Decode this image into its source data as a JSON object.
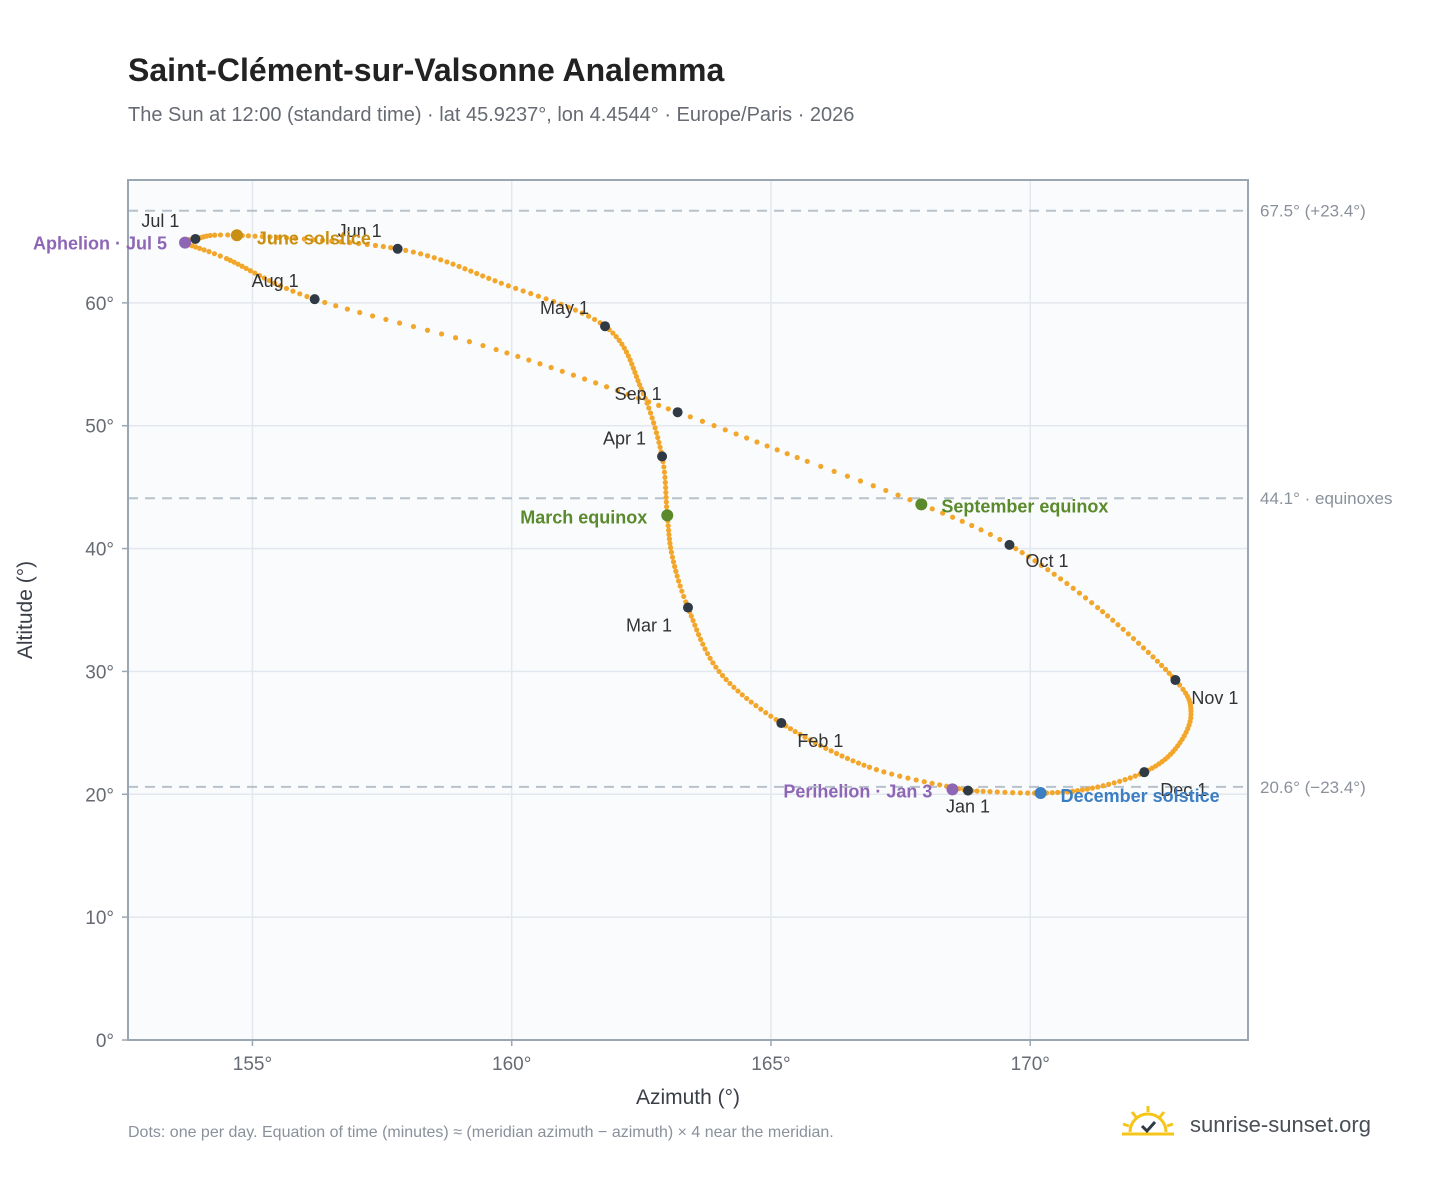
{
  "header": {
    "title": "Saint-Clément-sur-Valsonne Analemma",
    "subtitle": "The Sun at 12:00 (standard time) · lat 45.9237°, lon 4.4544° · Europe/Paris · 2026"
  },
  "footer": {
    "note": "Dots: one per day. Equation of time (minutes) ≈ (meridian azimuth − azimuth) × 4 near the meridian.",
    "brand": "sunrise-sunset.org"
  },
  "chart_data": {
    "type": "scatter",
    "xlabel": "Azimuth (°)",
    "ylabel": "Altitude (°)",
    "xlim": [
      152.6,
      174.2
    ],
    "ylim": [
      0,
      70
    ],
    "x_ticks": [
      {
        "value": 155,
        "label": "155°"
      },
      {
        "value": 160,
        "label": "160°"
      },
      {
        "value": 165,
        "label": "165°"
      },
      {
        "value": 170,
        "label": "170°"
      }
    ],
    "y_ticks": [
      {
        "value": 0,
        "label": "0°"
      },
      {
        "value": 10,
        "label": "10°"
      },
      {
        "value": 20,
        "label": "20°"
      },
      {
        "value": 30,
        "label": "30°"
      },
      {
        "value": 40,
        "label": "40°"
      },
      {
        "value": 50,
        "label": "50°"
      },
      {
        "value": 60,
        "label": "60°"
      }
    ],
    "grid": true,
    "colors": {
      "path": "#f2a62a",
      "month": "#2f3a44",
      "event_purple": "#8e66b6",
      "event_gold": "#c98f12",
      "event_green": "#5a8a2c",
      "event_blue": "#3b7ec2",
      "reference": "#b8c2cc",
      "plot_bg": "#f9fbfd",
      "frame": "#9aa6b2",
      "grid": "#e3e8ee"
    },
    "reference_lines": [
      {
        "y": 67.5,
        "label": "67.5° (+23.4°)"
      },
      {
        "y": 44.1,
        "label": "44.1° · equinoxes"
      },
      {
        "y": 20.6,
        "label": "20.6° (−23.4°)"
      }
    ],
    "analemma_path": [
      {
        "day": 1,
        "x": 168.8,
        "y": 20.3
      },
      {
        "day": 15,
        "x": 166.9,
        "y": 22.2
      },
      {
        "day": 32,
        "x": 165.2,
        "y": 25.8
      },
      {
        "day": 46,
        "x": 164.0,
        "y": 30.0
      },
      {
        "day": 60,
        "x": 163.4,
        "y": 35.2
      },
      {
        "day": 70,
        "x": 163.1,
        "y": 39.3
      },
      {
        "day": 79,
        "x": 163.0,
        "y": 42.7
      },
      {
        "day": 91,
        "x": 162.9,
        "y": 47.5
      },
      {
        "day": 105,
        "x": 162.5,
        "y": 53.0
      },
      {
        "day": 121,
        "x": 161.8,
        "y": 58.1
      },
      {
        "day": 136,
        "x": 159.8,
        "y": 61.6
      },
      {
        "day": 152,
        "x": 157.8,
        "y": 64.4
      },
      {
        "day": 172,
        "x": 154.7,
        "y": 65.5
      },
      {
        "day": 182,
        "x": 153.9,
        "y": 65.2
      },
      {
        "day": 186,
        "x": 153.7,
        "y": 64.9
      },
      {
        "day": 196,
        "x": 154.5,
        "y": 63.6
      },
      {
        "day": 213,
        "x": 156.2,
        "y": 60.3
      },
      {
        "day": 227,
        "x": 159.7,
        "y": 56.2
      },
      {
        "day": 244,
        "x": 163.2,
        "y": 51.1
      },
      {
        "day": 256,
        "x": 165.7,
        "y": 47.1
      },
      {
        "day": 265,
        "x": 167.9,
        "y": 43.6
      },
      {
        "day": 274,
        "x": 169.6,
        "y": 40.3
      },
      {
        "day": 288,
        "x": 171.3,
        "y": 35.2
      },
      {
        "day": 305,
        "x": 172.8,
        "y": 29.3
      },
      {
        "day": 315,
        "x": 173.1,
        "y": 26.5
      },
      {
        "day": 325,
        "x": 172.8,
        "y": 23.7
      },
      {
        "day": 335,
        "x": 172.2,
        "y": 21.8
      },
      {
        "day": 345,
        "x": 171.2,
        "y": 20.5
      },
      {
        "day": 355,
        "x": 170.2,
        "y": 20.1
      },
      {
        "day": 366,
        "x": 168.8,
        "y": 20.3
      }
    ],
    "month_markers": [
      {
        "label": "Jan 1",
        "x": 168.8,
        "y": 20.3,
        "anchor": "middle",
        "dx": 0,
        "dy": 22
      },
      {
        "label": "Feb 1",
        "x": 165.2,
        "y": 25.8,
        "anchor": "start",
        "dx": 16,
        "dy": 24
      },
      {
        "label": "Mar 1",
        "x": 163.4,
        "y": 35.2,
        "anchor": "end",
        "dx": -16,
        "dy": 24
      },
      {
        "label": "Apr 1",
        "x": 162.9,
        "y": 47.5,
        "anchor": "end",
        "dx": -16,
        "dy": -12
      },
      {
        "label": "May 1",
        "x": 161.8,
        "y": 58.1,
        "anchor": "end",
        "dx": -16,
        "dy": -12
      },
      {
        "label": "Jun 1",
        "x": 157.8,
        "y": 64.4,
        "anchor": "end",
        "dx": -16,
        "dy": -12
      },
      {
        "label": "Jul 1",
        "x": 153.9,
        "y": 65.2,
        "anchor": "end",
        "dx": -16,
        "dy": -12
      },
      {
        "label": "Aug 1",
        "x": 156.2,
        "y": 60.3,
        "anchor": "end",
        "dx": -16,
        "dy": -12
      },
      {
        "label": "Sep 1",
        "x": 163.2,
        "y": 51.1,
        "anchor": "end",
        "dx": -16,
        "dy": -12
      },
      {
        "label": "Oct 1",
        "x": 169.6,
        "y": 40.3,
        "anchor": "start",
        "dx": 16,
        "dy": 22
      },
      {
        "label": "Nov 1",
        "x": 172.8,
        "y": 29.3,
        "anchor": "start",
        "dx": 16,
        "dy": 24
      },
      {
        "label": "Dec 1",
        "x": 172.2,
        "y": 21.8,
        "anchor": "start",
        "dx": 16,
        "dy": 24
      }
    ],
    "events": [
      {
        "label": "Aphelion · Jul 5",
        "x": 153.7,
        "y": 64.9,
        "color": "#8e66b6",
        "anchor": "end",
        "dx": -18,
        "dy": 7
      },
      {
        "label": "June solstice",
        "x": 154.7,
        "y": 65.5,
        "color": "#c98f12",
        "anchor": "start",
        "dx": 20,
        "dy": 9
      },
      {
        "label": "March equinox",
        "x": 163.0,
        "y": 42.7,
        "color": "#5a8a2c",
        "anchor": "end",
        "dx": -20,
        "dy": 8
      },
      {
        "label": "September equinox",
        "x": 167.9,
        "y": 43.6,
        "color": "#5a8a2c",
        "anchor": "start",
        "dx": 20,
        "dy": 8
      },
      {
        "label": "Perihelion · Jan 3",
        "x": 168.5,
        "y": 20.4,
        "color": "#8e66b6",
        "anchor": "end",
        "dx": -20,
        "dy": 8
      },
      {
        "label": "December solstice",
        "x": 170.2,
        "y": 20.1,
        "color": "#3b7ec2",
        "anchor": "start",
        "dx": 20,
        "dy": 9
      }
    ]
  }
}
